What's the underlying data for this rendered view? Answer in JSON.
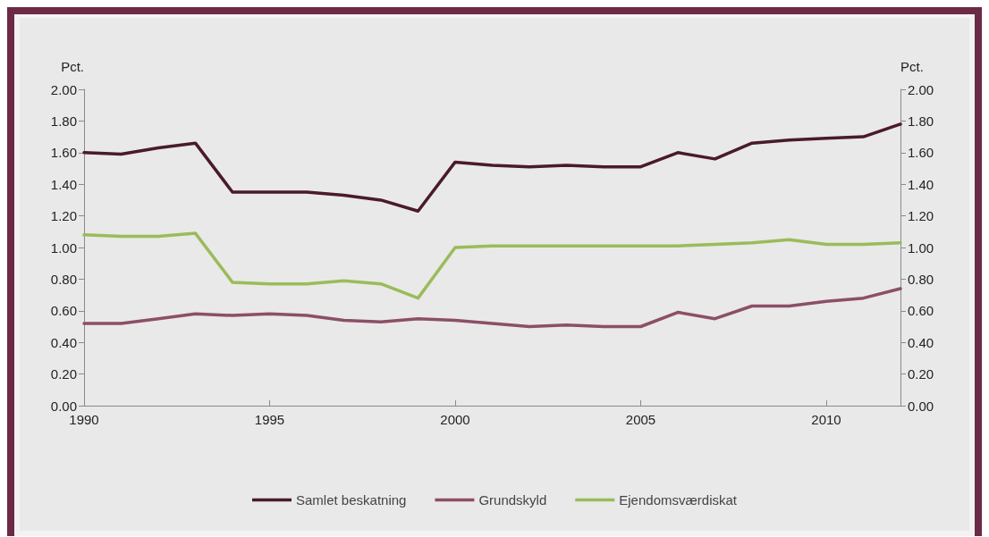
{
  "chart_data": {
    "type": "line",
    "ylabel": "Pct.",
    "y2label": "Pct.",
    "x": [
      1990,
      1991,
      1992,
      1993,
      1994,
      1995,
      1996,
      1997,
      1998,
      1999,
      2000,
      2001,
      2002,
      2003,
      2004,
      2005,
      2006,
      2007,
      2008,
      2009,
      2010,
      2011,
      2012
    ],
    "series": [
      {
        "name": "Samlet beskatning",
        "color": "#4a1a2c",
        "values": [
          1.6,
          1.59,
          1.63,
          1.66,
          1.35,
          1.35,
          1.35,
          1.33,
          1.3,
          1.23,
          1.54,
          1.52,
          1.51,
          1.52,
          1.51,
          1.51,
          1.6,
          1.56,
          1.66,
          1.68,
          1.69,
          1.7,
          1.78
        ]
      },
      {
        "name": "Grundskyld",
        "color": "#8c4f68",
        "values": [
          0.52,
          0.52,
          0.55,
          0.58,
          0.57,
          0.58,
          0.57,
          0.54,
          0.53,
          0.55,
          0.54,
          0.52,
          0.5,
          0.51,
          0.5,
          0.5,
          0.59,
          0.55,
          0.63,
          0.63,
          0.66,
          0.68,
          0.74
        ]
      },
      {
        "name": "Ejendomsværdiskat",
        "color": "#9bbb59",
        "values": [
          1.08,
          1.07,
          1.07,
          1.09,
          0.78,
          0.77,
          0.77,
          0.79,
          0.77,
          0.68,
          1.0,
          1.01,
          1.01,
          1.01,
          1.01,
          1.01,
          1.01,
          1.02,
          1.03,
          1.05,
          1.02,
          1.02,
          1.03
        ]
      }
    ],
    "xlim": [
      1990,
      2012
    ],
    "xticks": [
      1990,
      1995,
      2000,
      2005,
      2010
    ],
    "ylim": [
      0,
      2
    ],
    "yticks": [
      {
        "value": 0,
        "label": "0.00"
      },
      {
        "value": 0.2,
        "label": "0.20"
      },
      {
        "value": 0.4,
        "label": "0.40"
      },
      {
        "value": 0.6,
        "label": "0.60"
      },
      {
        "value": 0.8,
        "label": "0.80"
      },
      {
        "value": 1,
        "label": "1.00"
      },
      {
        "value": 1.2,
        "label": "1.20"
      },
      {
        "value": 1.4,
        "label": "1.40"
      },
      {
        "value": 1.6,
        "label": "1.60"
      },
      {
        "value": 1.8,
        "label": "1.80"
      },
      {
        "value": 2,
        "label": "2.00"
      }
    ],
    "y2lim": [
      0,
      2
    ],
    "y2ticks": [
      {
        "value": 0,
        "label": "0.00"
      },
      {
        "value": 0.2,
        "label": "0.20"
      },
      {
        "value": 0.4,
        "label": "0.40"
      },
      {
        "value": 0.6,
        "label": "0.60"
      },
      {
        "value": 0.8,
        "label": "0.80"
      },
      {
        "value": 1,
        "label": "1.00"
      },
      {
        "value": 1.2,
        "label": "1.20"
      },
      {
        "value": 1.4,
        "label": "1.40"
      },
      {
        "value": 1.6,
        "label": "1.60"
      },
      {
        "value": 1.8,
        "label": "1.80"
      },
      {
        "value": 2,
        "label": "2.00"
      }
    ],
    "grid": false,
    "legend": "bottom",
    "marker": "none",
    "line_style": "solid"
  }
}
